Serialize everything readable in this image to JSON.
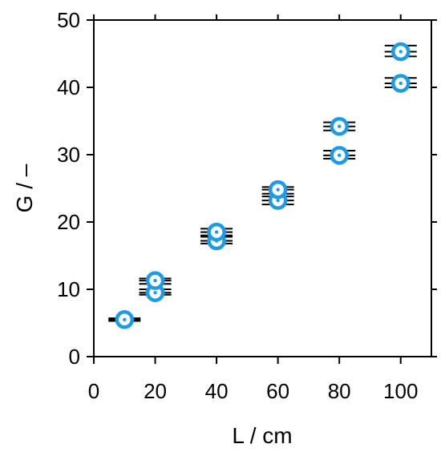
{
  "chart_data": {
    "type": "scatter",
    "title": "",
    "xlabel": "L / cm",
    "ylabel": "G / –",
    "xlim": [
      0,
      110
    ],
    "ylim": [
      0,
      50
    ],
    "xticks": [
      0,
      20,
      40,
      60,
      80,
      100
    ],
    "yticks": [
      0,
      10,
      20,
      30,
      40,
      50
    ],
    "x_tick_labels": [
      "0",
      "20",
      "40",
      "60",
      "80",
      "100"
    ],
    "y_tick_labels": [
      "0",
      "10",
      "20",
      "30",
      "40",
      "50"
    ],
    "grid": false,
    "legend": "none",
    "marker": "circle-with-dot",
    "marker_color": "#1e9be6",
    "errorbar_color": "#000000",
    "series": [
      {
        "points": [
          {
            "x": 10,
            "y": 5.5,
            "yerr": [
              5.3,
              5.7
            ]
          },
          {
            "x": 20,
            "y": 9.5,
            "yerr": [
              9.2,
              10.0
            ]
          },
          {
            "x": 20,
            "y": 11.3,
            "yerr": [
              10.8,
              11.6
            ]
          },
          {
            "x": 40,
            "y": 17.2,
            "yerr": [
              16.8,
              17.8
            ]
          },
          {
            "x": 40,
            "y": 18.5,
            "yerr": [
              18.0,
              19.0
            ]
          },
          {
            "x": 60,
            "y": 23.2,
            "yerr": [
              22.6,
              23.8
            ]
          },
          {
            "x": 60,
            "y": 24.8,
            "yerr": [
              24.2,
              25.2
            ]
          },
          {
            "x": 80,
            "y": 29.9,
            "yerr": [
              29.4,
              30.6
            ]
          },
          {
            "x": 80,
            "y": 34.2,
            "yerr": [
              33.6,
              34.8
            ]
          },
          {
            "x": 100,
            "y": 40.6,
            "yerr": [
              40.0,
              41.4
            ]
          },
          {
            "x": 100,
            "y": 45.3,
            "yerr": [
              44.6,
              46.2
            ]
          }
        ]
      }
    ]
  }
}
